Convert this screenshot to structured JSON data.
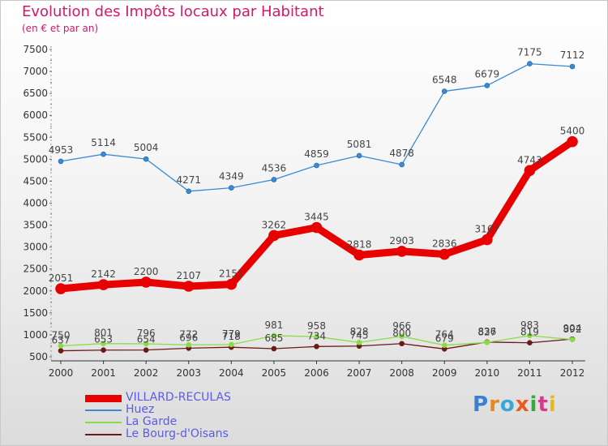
{
  "header": {
    "title": "Evolution des Impôts locaux par Habitant",
    "subtitle": "(en € et par an)"
  },
  "brand": {
    "text": "Proxiti",
    "letter_colors": [
      "#3a7fd0",
      "#e88a1a",
      "#39a8d8",
      "#ec5a22",
      "#3aaa3a",
      "#d83a8a",
      "#e8b81a"
    ]
  },
  "chart_data": {
    "type": "line",
    "title": "Evolution des Impôts locaux par Habitant",
    "subtitle": "(en € et par an)",
    "xlabel": "",
    "ylabel": "",
    "x": [
      "2000",
      "2001",
      "2002",
      "2003",
      "2004",
      "2005",
      "2006",
      "2007",
      "2008",
      "2009",
      "2010",
      "2011",
      "2012"
    ],
    "ylim": [
      500,
      7500
    ],
    "yticks": [
      "500",
      "1000",
      "1500",
      "2000",
      "2500",
      "3000",
      "3500",
      "4000",
      "4500",
      "5000",
      "5500",
      "6000",
      "6500",
      "7000",
      "7500"
    ],
    "grid": false,
    "legend_position": "bottom-left",
    "series": [
      {
        "name": "VILLARD-RECULAS",
        "color": "#e80000",
        "values": [
          2051,
          2142,
          2200,
          2107,
          2151,
          3262,
          3445,
          2818,
          2903,
          2836,
          3167,
          4743,
          5400
        ],
        "labels": [
          "2051",
          "2142",
          "2200",
          "2107",
          "2151",
          "3262",
          "3445",
          "2818",
          "2903",
          "2836",
          "3167",
          "4743",
          "5400"
        ]
      },
      {
        "name": "Huez",
        "color": "#3a8ad6",
        "values": [
          4953,
          5114,
          5004,
          4271,
          4349,
          4536,
          4859,
          5081,
          4878,
          6548,
          6679,
          7175,
          7112
        ],
        "labels": [
          "4953",
          "5114",
          "5004",
          "4271",
          "4349",
          "4536",
          "4859",
          "5081",
          "4878",
          "6548",
          "6679",
          "7175",
          "7112"
        ]
      },
      {
        "name": "La Garde",
        "color": "#88dd44",
        "values": [
          750,
          801,
          796,
          772,
          779,
          981,
          958,
          828,
          966,
          764,
          827,
          983,
          892
        ],
        "labels": [
          "750",
          "801",
          "796",
          "772",
          "779",
          "981",
          "958",
          "828",
          "966",
          "764",
          "827",
          "983",
          "892"
        ]
      },
      {
        "name": "Le Bourg-d'Oisans",
        "color": "#6b1a1a",
        "values": [
          637,
          653,
          654,
          696,
          718,
          685,
          734,
          745,
          800,
          679,
          836,
          819,
          904
        ],
        "labels": [
          "637",
          "653",
          "654",
          "696",
          "718",
          "685",
          "734",
          "745",
          "800",
          "679",
          "836",
          "819",
          "904"
        ]
      }
    ]
  }
}
